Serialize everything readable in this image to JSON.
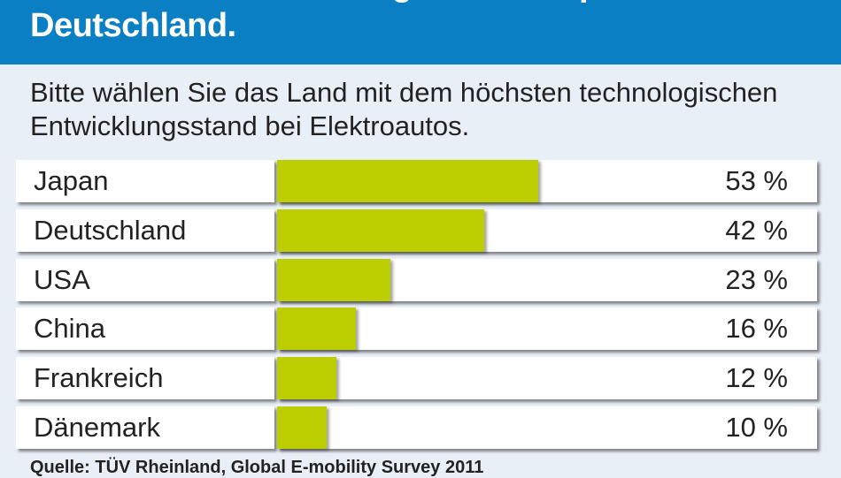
{
  "chart_data": {
    "type": "bar",
    "orientation": "horizontal",
    "title": "Elektroautos: Technologieführer Japan und Deutschland.",
    "subtitle": "Bitte wählen Sie das Land mit dem höchsten technologischen Entwicklungsstand bei Elektroautos.",
    "categories": [
      "Japan",
      "Deutschland",
      "USA",
      "China",
      "Frankreich",
      "Dänemark"
    ],
    "values": [
      53,
      42,
      23,
      16,
      12,
      10
    ],
    "value_labels": [
      "53 %",
      "42 %",
      "23 %",
      "16 %",
      "12 %",
      "10 %"
    ],
    "unit": "%",
    "source": "Quelle: TÜV Rheinland, Global E-mobility Survey 2011",
    "colors": {
      "header": "#0a7fc4",
      "bar": "#bccd00",
      "background": "#e9eff7"
    }
  }
}
